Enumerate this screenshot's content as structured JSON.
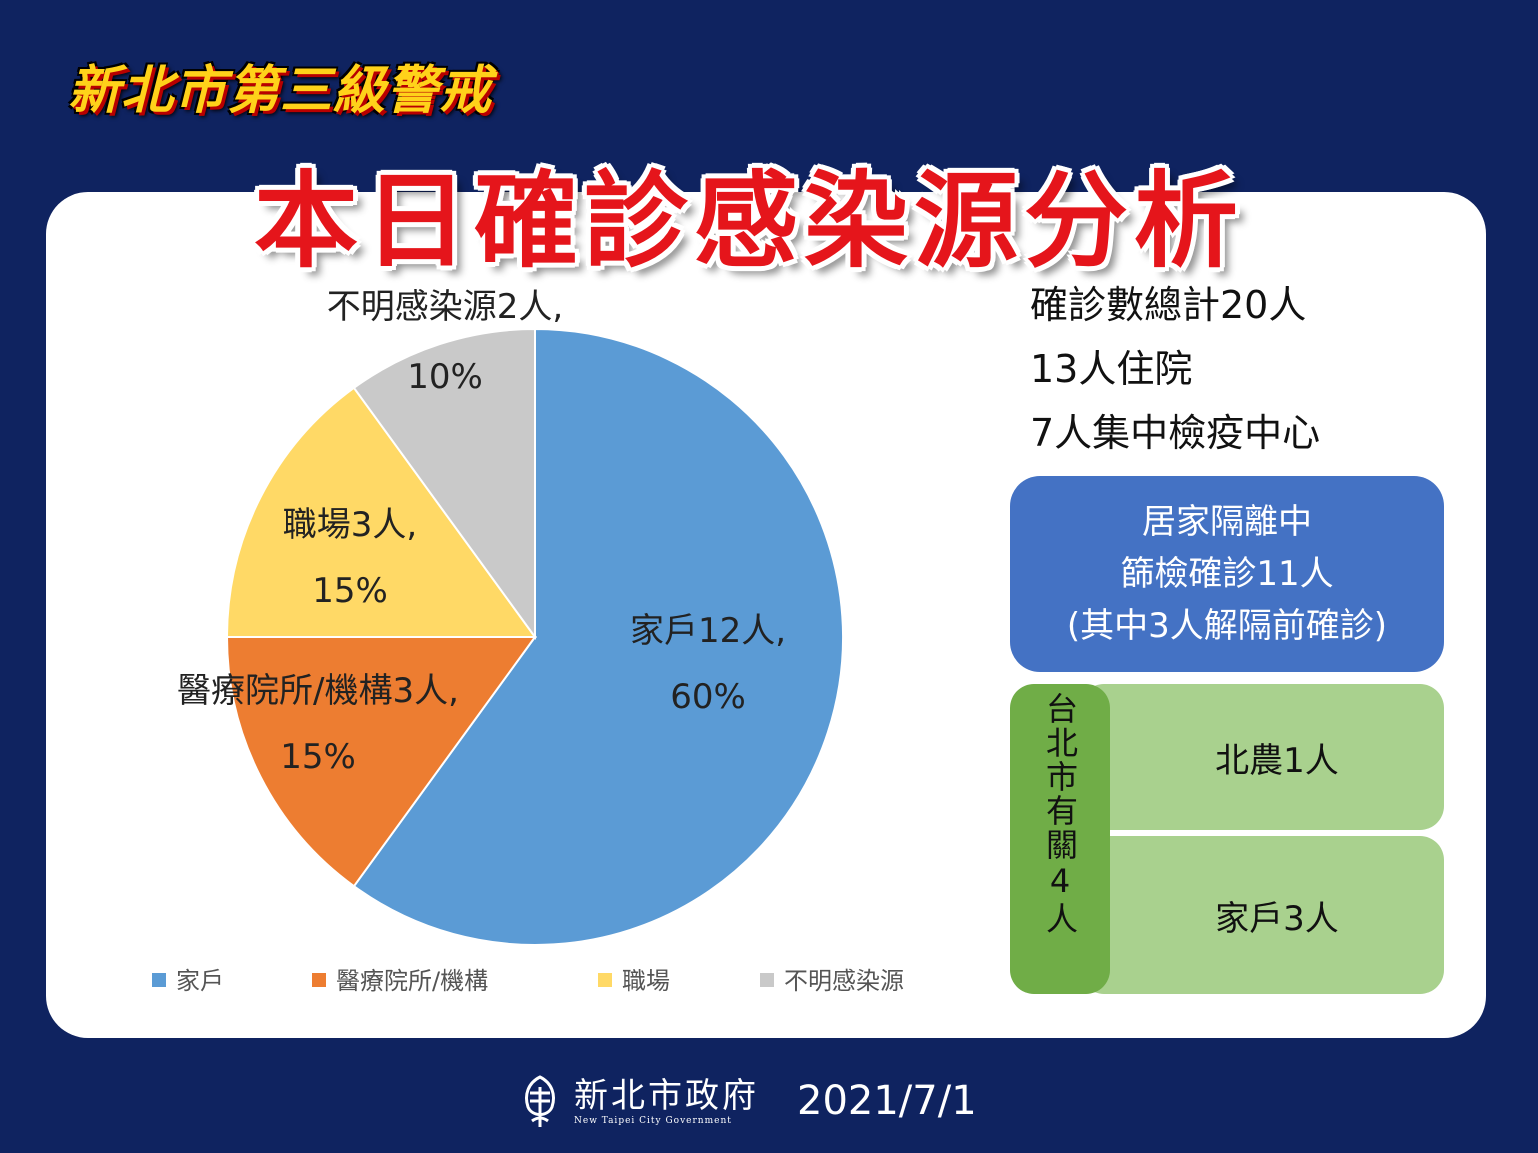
{
  "header": {
    "kicker": "新北市第三級警戒",
    "title": "本日確診感染源分析"
  },
  "chart_data": {
    "type": "pie",
    "start_angle_deg": 0,
    "direction": "clockwise",
    "slices": [
      {
        "category": "家戶",
        "count": 12,
        "percent": 60,
        "color": "#5b9bd5",
        "label_line1": "家戶12人,",
        "label_line2": "60%"
      },
      {
        "category": "醫療院所/機構",
        "count": 3,
        "percent": 15,
        "color": "#ed7d31",
        "label_line1": "醫療院所/機構3人,",
        "label_line2": "15%"
      },
      {
        "category": "職場",
        "count": 3,
        "percent": 15,
        "color": "#ffd966",
        "label_line1": "職場3人,",
        "label_line2": "15%"
      },
      {
        "category": "不明感染源",
        "count": 2,
        "percent": 10,
        "color": "#c9c9c9",
        "label_line1": "不明感染源2人,",
        "label_line2": "10%"
      }
    ],
    "legend": [
      "家戶",
      "醫療院所/機構",
      "職場",
      "不明感染源"
    ],
    "legend_position": "bottom"
  },
  "stats": {
    "total": "確診數總計20人",
    "hospitalized": "13人住院",
    "quarantine": "7人集中檢疫中心"
  },
  "home_isolation": {
    "line1": "居家隔離中",
    "line2": "篩檢確診11人",
    "line3": "(其中3人解隔前確診)"
  },
  "taipei": {
    "vertical_label": "台北市有關4人",
    "row1": "北農1人",
    "row2": "家戶3人"
  },
  "footer": {
    "org_name": "新北市政府",
    "org_name_en": "New Taipei City Government",
    "date": "2021/7/1"
  },
  "colors": {
    "background": "#0f2360",
    "blue_box": "#4472c4",
    "green_dark": "#70ad47",
    "green_light": "#a9d18e",
    "title_red": "#e5151b"
  }
}
